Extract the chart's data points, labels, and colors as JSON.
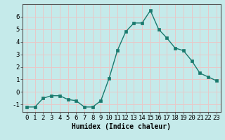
{
  "x": [
    0,
    1,
    2,
    3,
    4,
    5,
    6,
    7,
    8,
    9,
    10,
    11,
    12,
    13,
    14,
    15,
    16,
    17,
    18,
    19,
    20,
    21,
    22,
    23
  ],
  "y": [
    -1.2,
    -1.2,
    -0.5,
    -0.3,
    -0.3,
    -0.6,
    -0.7,
    -1.2,
    -1.2,
    -0.7,
    1.1,
    3.3,
    4.8,
    5.5,
    5.5,
    6.5,
    5.0,
    4.3,
    3.5,
    3.3,
    2.5,
    1.5,
    1.2,
    0.9
  ],
  "line_color": "#1a7a6e",
  "marker": "s",
  "marker_size": 2.5,
  "linewidth": 1.0,
  "xlabel": "Humidex (Indice chaleur)",
  "xlabel_fontsize": 7,
  "xlabel_fontweight": "bold",
  "yticks": [
    -1,
    0,
    1,
    2,
    3,
    4,
    5,
    6
  ],
  "xlim": [
    -0.5,
    23.5
  ],
  "ylim": [
    -1.6,
    7.0
  ],
  "bg_color": "#c5eaea",
  "grid_color": "#e8c8c8",
  "tick_fontsize": 6.5,
  "spine_color": "#555555"
}
